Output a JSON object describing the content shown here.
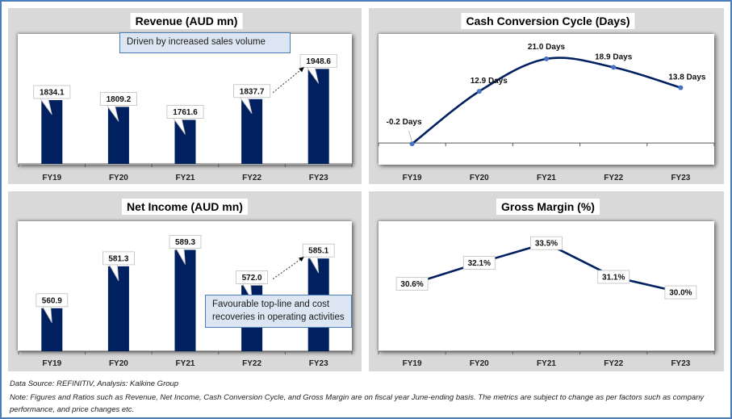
{
  "chart_data": [
    {
      "id": "revenue",
      "type": "bar",
      "title": "Revenue (AUD mn)",
      "categories": [
        "FY19",
        "FY20",
        "FY21",
        "FY22",
        "FY23"
      ],
      "values": [
        1834.1,
        1809.2,
        1761.6,
        1837.7,
        1948.6
      ],
      "data_labels": [
        "1834.1",
        "1809.2",
        "1761.6",
        "1837.7",
        "1948.6"
      ],
      "ylim": [
        1600,
        2000
      ],
      "color": "#002060",
      "annotation": {
        "text": "Driven by increased sales volume",
        "arrow_from": "FY22",
        "arrow_to": "FY23"
      }
    },
    {
      "id": "ccc",
      "type": "line",
      "title": "Cash Conversion Cycle (Days)",
      "categories": [
        "FY19",
        "FY20",
        "FY21",
        "FY22",
        "FY23"
      ],
      "values": [
        -0.2,
        12.9,
        21.0,
        18.9,
        13.8
      ],
      "data_labels": [
        "-0.2 Days",
        "12.9 Days",
        "21.0 Days",
        "18.9 Days",
        "13.8 Days"
      ],
      "ylim": [
        -5,
        24
      ],
      "smooth": true,
      "color": "#002060",
      "marker_color": "#4472c4"
    },
    {
      "id": "net_income",
      "type": "bar",
      "title": "Net Income (AUD mn)",
      "categories": [
        "FY19",
        "FY20",
        "FY21",
        "FY22",
        "FY23"
      ],
      "values": [
        560.9,
        581.3,
        589.3,
        572.0,
        585.1
      ],
      "data_labels": [
        "560.9",
        "581.3",
        "589.3",
        "572.0",
        "585.1"
      ],
      "ylim": [
        540,
        595
      ],
      "color": "#002060",
      "annotation": {
        "text": "Favourable top-line and cost recoveries in operating activities",
        "arrow_from": "FY22",
        "arrow_to": "FY23"
      }
    },
    {
      "id": "gross_margin",
      "type": "line",
      "title": "Gross Margin (%)",
      "categories": [
        "FY19",
        "FY20",
        "FY21",
        "FY22",
        "FY23"
      ],
      "values": [
        30.6,
        32.1,
        33.5,
        31.1,
        30.0
      ],
      "data_labels": [
        "30.6%",
        "32.1%",
        "33.5%",
        "31.1%",
        "30.0%"
      ],
      "ylim": [
        26.5,
        34.2
      ],
      "smooth": false,
      "color": "#002060"
    }
  ],
  "footer": {
    "source": "Data Source: REFINITIV, Analysis: Kalkine Group",
    "note_line1": "Note: Figures and Ratios such as Revenue, Net Income, Cash Conversion Cycle, and Gross Margin are on fiscal year June-ending basis. The metrics are subject to change as per factors such as company",
    "note_line2": "performance, and price changes etc."
  }
}
